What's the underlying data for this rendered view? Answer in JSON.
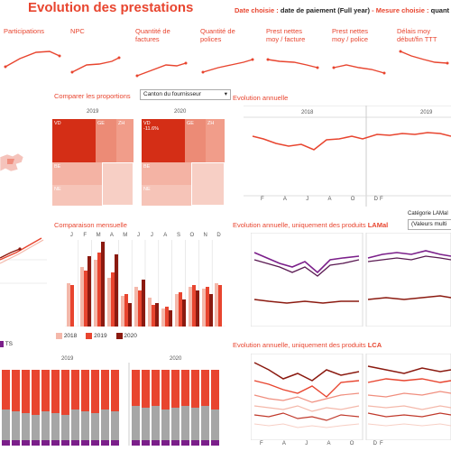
{
  "header": {
    "title": "Evolution des prestations",
    "date_label": "Date choisie :",
    "date_value": "date de paiement (Full year)",
    "sep": "-",
    "measure_label": "Mesure choisie :",
    "measure_value": "quant"
  },
  "kpis": [
    {
      "label_l1": "Participations",
      "label_l2": ""
    },
    {
      "label_l1": "NPC",
      "label_l2": ""
    },
    {
      "label_l1": "Quantité de",
      "label_l2": "factures"
    },
    {
      "label_l1": "Quantité de",
      "label_l2": "polices"
    },
    {
      "label_l1": "Prest nettes",
      "label_l2": "moy / facture"
    },
    {
      "label_l1": "Prest nettes",
      "label_l2": "moy / police"
    },
    {
      "label_l1": "Délais moy",
      "label_l2": "début/fin TTT"
    }
  ],
  "compare": {
    "title": "Comparer les proportions",
    "dropdown": "Canton du fournisseur",
    "years": [
      "2019",
      "2020"
    ],
    "cells_2019": [
      "VD",
      "GE",
      "ZH",
      "BE",
      "NE"
    ],
    "cells_2020": [
      "VD",
      "GE",
      "ZH",
      "BE",
      "NE"
    ],
    "vd_2020_delta": "-11.6%"
  },
  "annual": {
    "title": "Evolution annuelle",
    "years": [
      "2018",
      "2019"
    ],
    "months": [
      "F",
      "A",
      "J",
      "A",
      "O",
      "D",
      "F"
    ]
  },
  "monthly": {
    "title": "Comparaison mensuelle",
    "months": [
      "J",
      "F",
      "M",
      "A",
      "M",
      "J",
      "J",
      "A",
      "S",
      "O",
      "N",
      "D"
    ],
    "legend": [
      "2018",
      "2019",
      "2020"
    ]
  },
  "lamal": {
    "title_prefix": "Evolution annuelle, uniquement des produits",
    "title_bold": "LAMal",
    "category_label": "Catégorie LAMal",
    "category_value": "(Valeurs multi",
    "months": [
      "F",
      "A",
      "J",
      "A",
      "O",
      "D",
      "F"
    ]
  },
  "lca": {
    "title_prefix": "Evolution annuelle, uniquement des produits",
    "title_bold": "LCA",
    "months": [
      "F",
      "A",
      "J",
      "A",
      "O",
      "D",
      "F"
    ]
  },
  "bottom_left": {
    "legend_ts": "TS",
    "years": [
      "2019",
      "2020"
    ]
  },
  "colors": {
    "accent": "#e8452f",
    "dark_red": "#8b1a10",
    "purple": "#7b1f8a",
    "pink": "#f4b8aa",
    "grey": "#a6a6a6"
  }
}
